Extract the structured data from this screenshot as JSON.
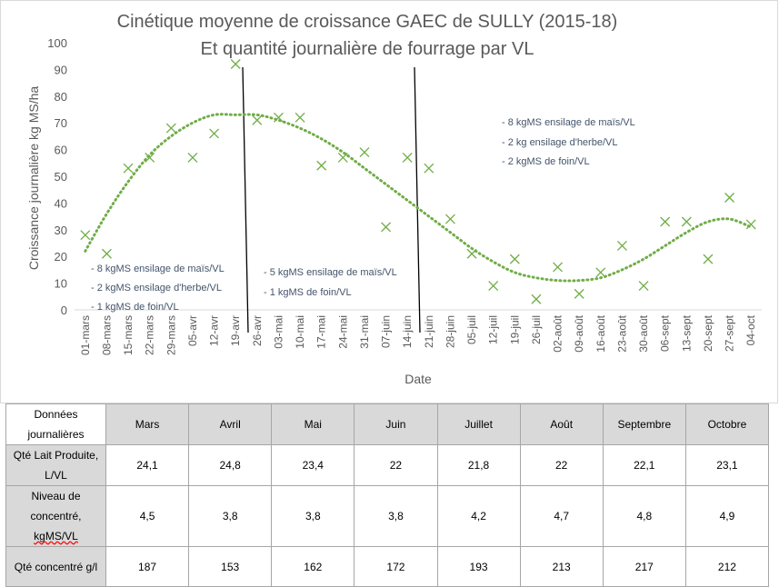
{
  "chart_data": {
    "type": "scatter",
    "title_lines": [
      "Cinétique moyenne de croissance GAEC de SULLY (2015-18)",
      "Et quantité journalière de fourrage par VL"
    ],
    "xlabel": "Date",
    "ylabel": "Croissance journalière kg MS/ha",
    "ylim": [
      0,
      100
    ],
    "yticks": [
      0,
      10,
      20,
      30,
      40,
      50,
      60,
      70,
      80,
      90,
      100
    ],
    "categories": [
      "01-mars",
      "08-mars",
      "15-mars",
      "22-mars",
      "29-mars",
      "05-avr",
      "12-avr",
      "19-avr",
      "26-avr",
      "03-mai",
      "10-mai",
      "17-mai",
      "24-mai",
      "31-mai",
      "07-juin",
      "14-juin",
      "21-juin",
      "28-juin",
      "05-juil",
      "12-juil",
      "19-juil",
      "26-juil",
      "02-août",
      "09-août",
      "16-août",
      "23-août",
      "30-août",
      "06-sept",
      "13-sept",
      "20-sept",
      "27-sept",
      "04-oct"
    ],
    "values": [
      28,
      21,
      53,
      57,
      68,
      57,
      66,
      92,
      71,
      72,
      72,
      54,
      57,
      59,
      31,
      57,
      53,
      34,
      21,
      9,
      19,
      4,
      16,
      6,
      14,
      24,
      9,
      33,
      33,
      19,
      42,
      32
    ],
    "trend": [
      22,
      36,
      48,
      58,
      65,
      70,
      73,
      73,
      73,
      71,
      68,
      64,
      59,
      53,
      47,
      41,
      35,
      29,
      23,
      18,
      14,
      12,
      11,
      11,
      12,
      15,
      19,
      24,
      29,
      33,
      34,
      31
    ],
    "marker": "x",
    "trend_style": "dotted polynomial",
    "color": "#70ad47",
    "separators_after_category": [
      "19-avr",
      "14-juin"
    ],
    "annotations": [
      {
        "lines": [
          "- 8 kgMS ensilage de maïs/VL",
          "- 2 kgMS ensilage d'herbe/VL",
          "- 1 kgMS de foin/VL"
        ]
      },
      {
        "lines": [
          "- 5 kgMS ensilage de maïs/VL",
          "- 1 kgMS de foin/VL"
        ]
      },
      {
        "lines": [
          "- 8 kgMS ensilage de maïs/VL",
          "- 2 kg ensilage d'herbe/VL",
          "- 2 kgMS de foin/VL"
        ]
      }
    ]
  },
  "table": {
    "header_label": "Données journalières",
    "months": [
      "Mars",
      "Avril",
      "Mai",
      "Juin",
      "Juillet",
      "Août",
      "Septembre",
      "Octobre"
    ],
    "rows": [
      {
        "label": "Qté Lait Produite, L/VL",
        "values": [
          "24,1",
          "24,8",
          "23,4",
          "22",
          "21,8",
          "22",
          "22,1",
          "23,1"
        ]
      },
      {
        "label_main": "Niveau de concentré, ",
        "label_tail": "kgMS/VL",
        "values": [
          "4,5",
          "3,8",
          "3,8",
          "3,8",
          "4,2",
          "4,7",
          "4,8",
          "4,9"
        ]
      },
      {
        "label": "Qté concentré g/l",
        "values": [
          "187",
          "153",
          "162",
          "172",
          "193",
          "213",
          "217",
          "212"
        ]
      }
    ]
  }
}
